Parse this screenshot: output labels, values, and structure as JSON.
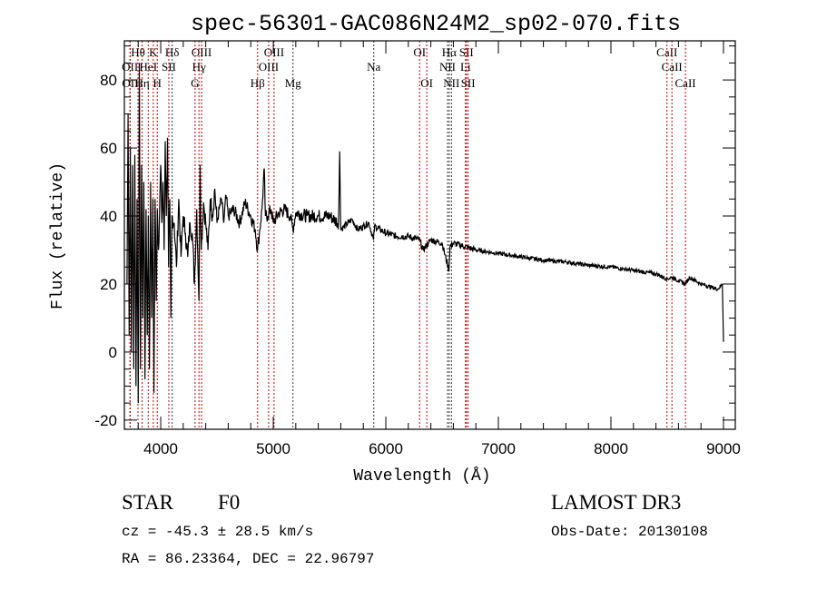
{
  "chart_data": {
    "type": "line",
    "title": "spec-56301-GAC086N24M2_sp02-070.fits",
    "xlabel": "Wavelength (Å)",
    "ylabel": "Flux (relative)",
    "xlim": [
      3677,
      9105
    ],
    "ylim": [
      -22.7,
      91.5
    ],
    "xticks": [
      4000,
      5000,
      6000,
      7000,
      8000,
      9000
    ],
    "yticks": [
      -20,
      0,
      20,
      40,
      60,
      80
    ],
    "grid": false,
    "series": [
      {
        "name": "spectrum",
        "x": [
          3700,
          3710,
          3720,
          3730,
          3740,
          3750,
          3760,
          3770,
          3780,
          3790,
          3800,
          3810,
          3820,
          3830,
          3840,
          3850,
          3860,
          3870,
          3880,
          3890,
          3900,
          3910,
          3920,
          3930,
          3940,
          3950,
          3960,
          3970,
          3980,
          4000,
          4010,
          4020,
          4030,
          4040,
          4050,
          4060,
          4070,
          4080,
          4090,
          4100,
          4120,
          4140,
          4160,
          4180,
          4200,
          4220,
          4240,
          4260,
          4280,
          4300,
          4320,
          4340,
          4350,
          4360,
          4380,
          4400,
          4420,
          4440,
          4460,
          4480,
          4500,
          4520,
          4540,
          4560,
          4580,
          4600,
          4650,
          4700,
          4750,
          4800,
          4840,
          4860,
          4880,
          4900,
          4920,
          4930,
          4950,
          4980,
          5000,
          5050,
          5100,
          5150,
          5175,
          5200,
          5300,
          5400,
          5500,
          5580,
          5590,
          5600,
          5700,
          5750,
          5800,
          5850,
          5890,
          5900,
          6000,
          6100,
          6200,
          6300,
          6330,
          6400,
          6500,
          6560,
          6570,
          6600,
          6700,
          6800,
          7000,
          7200,
          7400,
          7600,
          7800,
          8000,
          8200,
          8400,
          8500,
          8540,
          8600,
          8660,
          8700,
          8800,
          8900,
          8950,
          8990,
          9000
        ],
        "y": [
          20,
          70,
          5,
          60,
          0,
          55,
          -5,
          58,
          -10,
          45,
          -15,
          85,
          -5,
          55,
          10,
          50,
          -8,
          42,
          5,
          40,
          -5,
          50,
          10,
          45,
          -12,
          45,
          15,
          42,
          30,
          55,
          38,
          50,
          30,
          62,
          40,
          63,
          25,
          45,
          10,
          40,
          38,
          25,
          45,
          28,
          40,
          35,
          28,
          38,
          35,
          20,
          42,
          15,
          55,
          30,
          44,
          38,
          30,
          45,
          40,
          48,
          38,
          42,
          45,
          38,
          46,
          40,
          42,
          38,
          44,
          40,
          36,
          30,
          36,
          42,
          54,
          40,
          40,
          42,
          38,
          41,
          42,
          40,
          36,
          41,
          40,
          40,
          40,
          38,
          59,
          36,
          39,
          36,
          37,
          38,
          33,
          37,
          35,
          34,
          34,
          33,
          30,
          33,
          32,
          24,
          31,
          32,
          31,
          30,
          29,
          28,
          27,
          26.5,
          25.5,
          25,
          24,
          23,
          21.5,
          22,
          21,
          20,
          22,
          20,
          19,
          18.5,
          20,
          3
        ]
      }
    ],
    "lines": [
      {
        "label": "Hθ",
        "wave": 3798,
        "row": 0,
        "color": "#c00000"
      },
      {
        "label": "K",
        "wave": 3934,
        "row": 0,
        "color": "#c00000"
      },
      {
        "label": "Hδ",
        "wave": 4102,
        "row": 0,
        "color": "#333333"
      },
      {
        "label": "OIII",
        "wave": 4363,
        "row": 0,
        "color": "#c00000"
      },
      {
        "label": "OIII",
        "wave": 5007,
        "row": 0,
        "color": "#c00000"
      },
      {
        "label": "OI",
        "wave": 6300,
        "row": 0,
        "color": "#c00000"
      },
      {
        "label": "Hα",
        "wave": 6563,
        "row": 0,
        "color": "#333333"
      },
      {
        "label": "SII",
        "wave": 6716,
        "row": 0,
        "color": "#c00000"
      },
      {
        "label": "CaII",
        "wave": 8498,
        "row": 0,
        "color": "#c00000"
      },
      {
        "label": "OII",
        "wave": 3727,
        "row": 1,
        "color": "#c00000"
      },
      {
        "label": "HeI",
        "wave": 3889,
        "row": 1,
        "color": "#c00000"
      },
      {
        "label": "SII",
        "wave": 4072,
        "row": 1,
        "color": "#c00000"
      },
      {
        "label": "Hγ",
        "wave": 4340,
        "row": 1,
        "color": "#c00000"
      },
      {
        "label": "OIII",
        "wave": 4959,
        "row": 1,
        "color": "#c00000"
      },
      {
        "label": "Na",
        "wave": 5893,
        "row": 1,
        "color": "#333333"
      },
      {
        "label": "NII",
        "wave": 6548,
        "row": 1,
        "color": "#333333"
      },
      {
        "label": "Li",
        "wave": 6708,
        "row": 1,
        "color": "#c00000"
      },
      {
        "label": "CaII",
        "wave": 8542,
        "row": 1,
        "color": "#c00000"
      },
      {
        "label": "OII",
        "wave": 3729,
        "row": 2,
        "color": "#c00000"
      },
      {
        "label": "Hη",
        "wave": 3835,
        "row": 2,
        "color": "#c00000"
      },
      {
        "label": "H",
        "wave": 3969,
        "row": 2,
        "color": "#c00000"
      },
      {
        "label": "G",
        "wave": 4305,
        "row": 2,
        "color": "#c00000"
      },
      {
        "label": "Hβ",
        "wave": 4861,
        "row": 2,
        "color": "#c00000"
      },
      {
        "label": "Mg",
        "wave": 5175,
        "row": 2,
        "color": "#333333"
      },
      {
        "label": "OI",
        "wave": 6364,
        "row": 2,
        "color": "#c00000"
      },
      {
        "label": "NII",
        "wave": 6583,
        "row": 2,
        "color": "#333333"
      },
      {
        "label": "SII",
        "wave": 6731,
        "row": 2,
        "color": "#c00000"
      },
      {
        "label": "CaII",
        "wave": 8662,
        "row": 2,
        "color": "#c00000"
      }
    ]
  },
  "info": {
    "class": "STAR",
    "subclass": "F0",
    "cz": "cz = -45.3 ± 28.5 km/s",
    "coords": "RA =  86.23364, DEC =  22.96797",
    "survey": "LAMOST DR3",
    "obs_date": "Obs-Date: 20130108"
  }
}
